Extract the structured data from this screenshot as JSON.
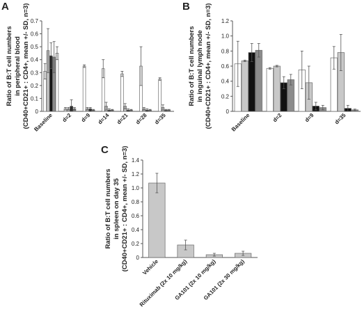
{
  "chart_data": [
    {
      "panel_label": "A",
      "type": "bar",
      "ylabel_lines": [
        "Ratio of B:T cell numbers",
        "in peripheral blood",
        "(CD40+CD21+ : CD4+, mean +/- SD, n=3)"
      ],
      "ylim": [
        0,
        0.7
      ],
      "yticks": [
        "0",
        "0.1",
        "0.2",
        "0.3",
        "0.4",
        "0.5",
        "0.6",
        "0.7"
      ],
      "categories": [
        "Baseline",
        "d=2",
        "d=9",
        "d=14",
        "d=21",
        "d=28",
        "d=35"
      ],
      "series": [
        {
          "color": "#ffffff",
          "values": [
            0.31,
            0.02,
            0.35,
            0.33,
            0.29,
            0.35,
            0.25
          ],
          "errors": [
            0.06,
            0.01,
            0.01,
            0.07,
            0.02,
            0.15,
            0.01
          ]
        },
        {
          "color": "#c8c8c8",
          "values": [
            0.47,
            0.02,
            0.02,
            0.04,
            0.04,
            0.02,
            0.03
          ],
          "errors": [
            0.17,
            0.01,
            0.01,
            0.03,
            0.02,
            0.01,
            0.02
          ]
        },
        {
          "color": "#111111",
          "values": [
            0.43,
            0.04,
            0.02,
            0.01,
            0.01,
            0.01,
            0.01
          ],
          "errors": [
            0.1,
            0.05,
            0.01,
            0.01,
            0.01,
            0.01,
            0.005
          ]
        },
        {
          "color": "#8c8c8c",
          "values": [
            0.42,
            0.02,
            0.01,
            0.01,
            0.01,
            0.01,
            0.01
          ],
          "errors": [
            0.12,
            0.01,
            0.005,
            0.005,
            0.005,
            0.005,
            0.005
          ]
        },
        {
          "color": "#ffffff",
          "values": [
            0.45,
            null,
            null,
            null,
            null,
            null,
            null
          ],
          "errors": [
            0.05,
            null,
            null,
            null,
            null,
            null,
            null
          ]
        }
      ],
      "grid": false
    },
    {
      "panel_label": "B",
      "type": "bar",
      "ylabel_lines": [
        "Ratio of B:T cell numbers",
        "in inguinal lymph node",
        "(CD40+CD21+ : CD4+, mean +/- SD, n=3)"
      ],
      "ylim": [
        0,
        1.2
      ],
      "yticks": [
        "0",
        "0.2",
        "0.4",
        "0.6",
        "0.8",
        "1.0",
        "1.2"
      ],
      "categories": [
        "Baseline",
        "d=2",
        "d=9",
        "d=35"
      ],
      "series": [
        {
          "color": "#ffffff",
          "values": [
            0.63,
            0.57,
            0.55,
            0.71
          ],
          "errors": [
            0.3,
            0.01,
            0.25,
            0.15
          ]
        },
        {
          "color": "#c8c8c8",
          "values": [
            0.67,
            0.6,
            0.38,
            0.78
          ],
          "errors": [
            0.01,
            0.01,
            0.22,
            0.24
          ]
        },
        {
          "color": "#111111",
          "values": [
            0.78,
            0.38,
            0.07,
            0.04
          ],
          "errors": [
            0.12,
            0.08,
            0.05,
            0.04
          ]
        },
        {
          "color": "#8c8c8c",
          "values": [
            0.81,
            0.42,
            0.05,
            0.02
          ],
          "errors": [
            0.09,
            0.07,
            0.03,
            0.01
          ]
        }
      ],
      "grid": false
    },
    {
      "panel_label": "C",
      "type": "bar",
      "ylabel_lines": [
        "Ratio of B:T cell numbers",
        "in spleen on day 35",
        "(CD40+CD21+ : CD4+, mean +/- SD, n=3)"
      ],
      "ylim": [
        0,
        1.4
      ],
      "yticks": [
        "0",
        "0.2",
        "0.4",
        "0.6",
        "0.8",
        "1.0",
        "1.2",
        "1.4"
      ],
      "categories": [
        "Vehicle",
        "Rituximab (2x 10 mg/kg)",
        "GA101 (2x 10 mg/kg)",
        "GA101 (2x 30 mg/kg)"
      ],
      "series": [
        {
          "color": "#c8c8c8",
          "values": [
            1.07,
            0.18,
            0.04,
            0.06
          ],
          "errors": [
            0.14,
            0.07,
            0.02,
            0.03
          ]
        }
      ],
      "grid": false
    }
  ]
}
